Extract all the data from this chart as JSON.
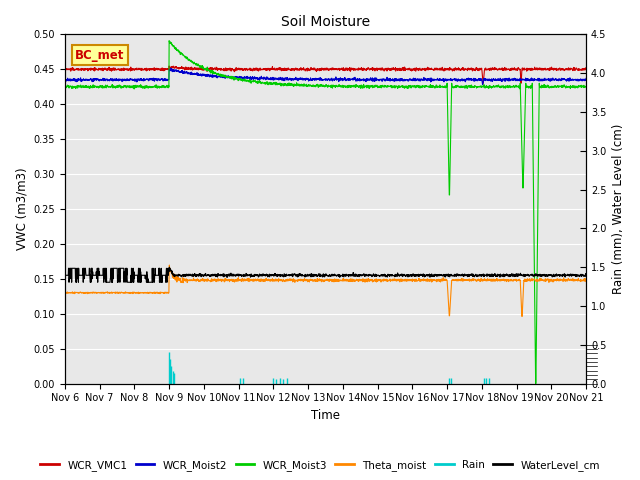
{
  "title": "Soil Moisture",
  "ylabel_left": "VWC (m3/m3)",
  "ylabel_right": "Rain (mm), Water Level (cm)",
  "xlabel": "Time",
  "ylim_left": [
    0.0,
    0.5
  ],
  "ylim_right": [
    0.0,
    4.5
  ],
  "yticks_left": [
    0.0,
    0.05,
    0.1,
    0.15,
    0.2,
    0.25,
    0.3,
    0.35,
    0.4,
    0.45,
    0.5
  ],
  "yticks_right": [
    0.0,
    0.5,
    1.0,
    1.5,
    2.0,
    2.5,
    3.0,
    3.5,
    4.0,
    4.5
  ],
  "xtick_labels": [
    "Nov 6",
    "Nov 7",
    "Nov 8",
    "Nov 9",
    "Nov 10",
    "Nov 11",
    "Nov 12",
    "Nov 13",
    "Nov 14",
    "Nov 15",
    "Nov 16",
    "Nov 17",
    "Nov 18",
    "Nov 19",
    "Nov 20",
    "Nov 21"
  ],
  "bg_color": "#e8e8e8",
  "annotation_text": "BC_met",
  "annotation_box_color": "#ffff99",
  "annotation_box_edge": "#cc8800",
  "series_colors": {
    "WCR_VMC1": "#cc0000",
    "WCR_Moist2": "#0000cc",
    "WCR_Moist3": "#00cc00",
    "Theta_moist": "#ff8800",
    "Rain": "#00cccc",
    "WaterLevel_cm": "#000000"
  },
  "figsize": [
    6.4,
    4.8
  ],
  "dpi": 100
}
